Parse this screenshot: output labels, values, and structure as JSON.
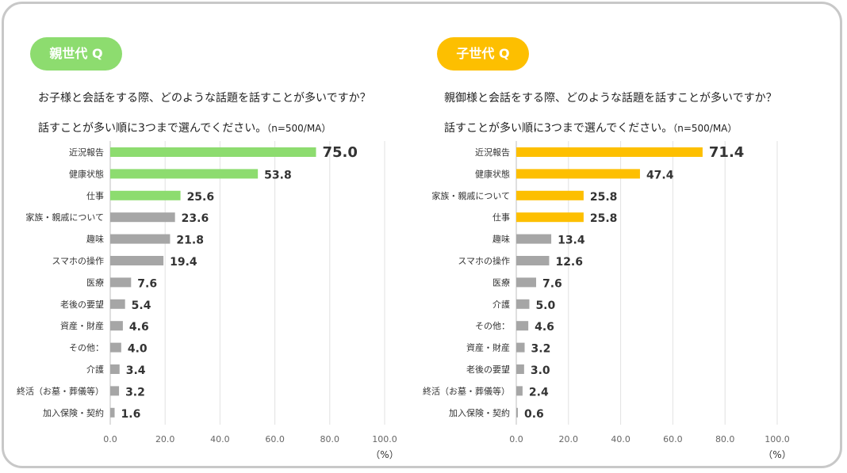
{
  "colors": {
    "parent_accent": "#8ddc6f",
    "parent_value": "#5fbf3f",
    "child_accent": "#fdbf00",
    "child_value": "#f07b3f",
    "gray_bar": "#a6a6a6"
  },
  "panels": [
    {
      "badge": "親世代 Q",
      "question_line1": "お子様と会話をする際、どのような話題を話すことが多いですか？",
      "question_line2": "話すことが多い順に3つまで選んでください。",
      "sample": "（n=500/MA）"
    },
    {
      "badge": "子世代 Q",
      "question_line1": "親御様と会話をする際、どのような話題を話すことが多いですか？",
      "question_line2": "話すことが多い順に3つまで選んでください。",
      "sample": "（n=500/MA）"
    }
  ],
  "chart_data": [
    {
      "type": "bar",
      "orientation": "horizontal",
      "categories": [
        "近況報告",
        "健康状態",
        "仕事",
        "家族・親戚について",
        "趣味",
        "スマホの操作",
        "医療",
        "老後の要望",
        "資産・財産",
        "その他：",
        "介護",
        "終活（お墓・葬儀等）",
        "加入保険・契約"
      ],
      "values": [
        75.0,
        53.8,
        25.6,
        23.6,
        21.8,
        19.4,
        7.6,
        5.4,
        4.6,
        4.0,
        3.4,
        3.2,
        1.6
      ],
      "value_labels": [
        "75.0",
        "53.8",
        "25.6",
        "23.6",
        "21.8",
        "19.4",
        "7.6",
        "5.4",
        "4.6",
        "4.0",
        "3.4",
        "3.2",
        "1.6"
      ],
      "highlight_top": 3,
      "xlim": [
        0,
        100
      ],
      "xticks": [
        "0.0",
        "20.0",
        "40.0",
        "60.0",
        "80.0",
        "100.0"
      ],
      "xlabel": "（%）",
      "grid": true
    },
    {
      "type": "bar",
      "orientation": "horizontal",
      "categories": [
        "近況報告",
        "健康状態",
        "家族・親戚について",
        "仕事",
        "趣味",
        "スマホの操作",
        "医療",
        "介護",
        "その他：",
        "資産・財産",
        "老後の要望",
        "終活（お墓・葬儀等）",
        "加入保険・契約"
      ],
      "values": [
        71.4,
        47.4,
        25.8,
        25.8,
        13.4,
        12.6,
        7.6,
        5.0,
        4.6,
        3.2,
        3.0,
        2.4,
        0.6
      ],
      "value_labels": [
        "71.4",
        "47.4",
        "25.8",
        "25.8",
        "13.4",
        "12.6",
        "7.6",
        "5.0",
        "4.6",
        "3.2",
        "3.0",
        "2.4",
        "0.6"
      ],
      "highlight_top": 4,
      "xlim": [
        0,
        100
      ],
      "xticks": [
        "0.0",
        "20.0",
        "40.0",
        "60.0",
        "80.0",
        "100.0"
      ],
      "xlabel": "（%）",
      "grid": true
    }
  ]
}
